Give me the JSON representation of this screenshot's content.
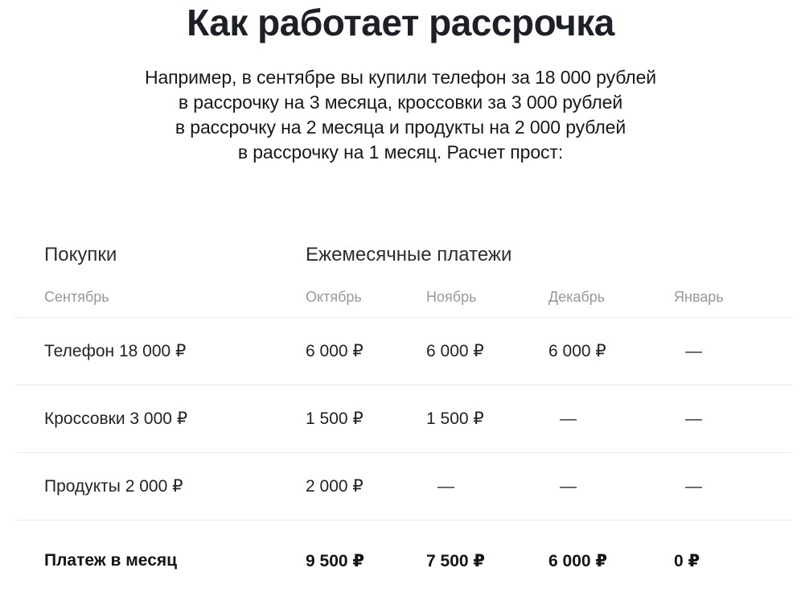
{
  "page": {
    "title": "Как работает рассрочка",
    "intro_lines": [
      "Например, в сентябре вы купили телефон за 18 000 рублей",
      "в рассрочку на 3 месяца, кроссовки за 3 000 рублей",
      "в рассрочку на 2 месяца и продукты на 2 000 рублей",
      "в рассрочку на 1 месяц. Расчет прост:"
    ]
  },
  "table": {
    "group_headers": {
      "purchases": "Покупки",
      "monthly_payments": "Ежемесячные платежи"
    },
    "month_columns": [
      "Сентябрь",
      "Октябрь",
      "Ноябрь",
      "Декабрь",
      "Январь"
    ],
    "rows": [
      {
        "label": "Телефон 18 000 ₽",
        "values": [
          "6 000 ₽",
          "6 000 ₽",
          "6 000 ₽",
          "—"
        ]
      },
      {
        "label": "Кроссовки 3 000 ₽",
        "values": [
          "1 500 ₽",
          "1 500 ₽",
          "—",
          "—"
        ]
      },
      {
        "label": "Продукты 2 000 ₽",
        "values": [
          "2 000 ₽",
          "—",
          "—",
          "—"
        ]
      }
    ],
    "total_row": {
      "label": "Платеж в месяц",
      "values": [
        "9 500 ₽",
        "7 500 ₽",
        "6 000 ₽",
        "0 ₽"
      ]
    }
  },
  "colors": {
    "title_text": "#1d2127",
    "body_text": "#17181a",
    "table_header_text": "#2e2e2e",
    "month_label_text": "#98989a",
    "value_text": "#232323",
    "divider": "#ebebe9",
    "background": "#ffffff"
  }
}
